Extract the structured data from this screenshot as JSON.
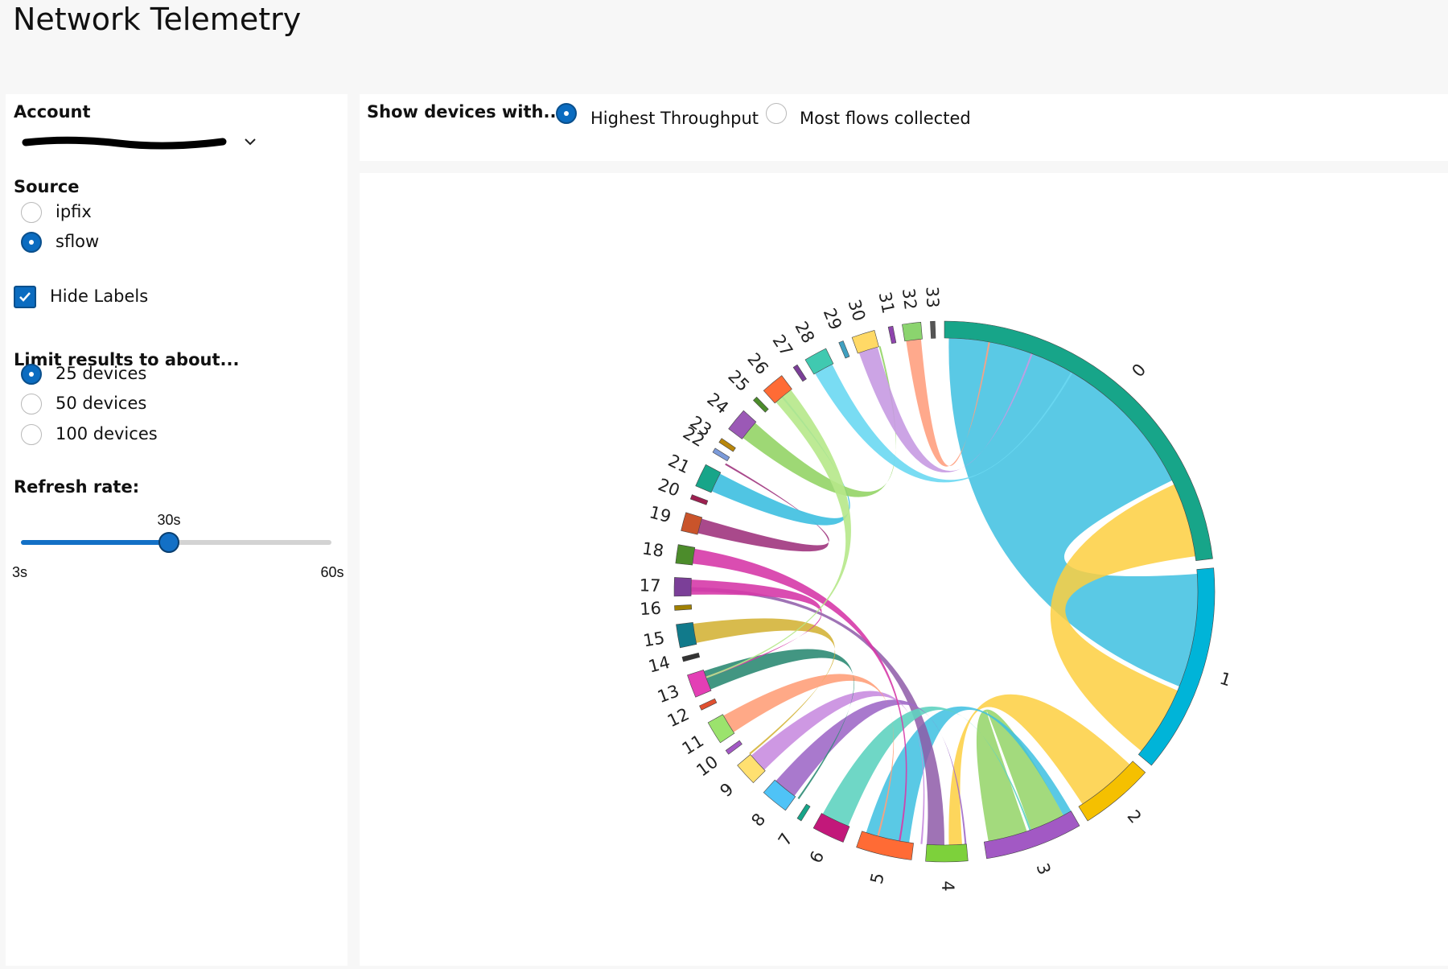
{
  "header": {
    "title": "Network Telemetry"
  },
  "sidebar": {
    "account": {
      "label": "Account"
    },
    "source": {
      "label": "Source",
      "options": [
        "ipfix",
        "sflow"
      ],
      "selected": 1
    },
    "hide_labels": {
      "label": "Hide Labels",
      "checked": true
    },
    "limit": {
      "label": "Limit results to about...",
      "options": [
        "25 devices",
        "50 devices",
        "100 devices"
      ],
      "selected": 0
    },
    "refresh": {
      "label": "Refresh rate:",
      "value": "30s",
      "min": "3s",
      "max": "60s"
    }
  },
  "toolbar": {
    "label": "Show devices with...",
    "options": [
      "Highest Throughput",
      "Most flows collected"
    ],
    "selected": 0
  },
  "chord": {
    "nodes": [
      "0",
      "1",
      "2",
      "3",
      "4",
      "5",
      "6",
      "7",
      "8",
      "9",
      "10",
      "11",
      "12",
      "13",
      "14",
      "15",
      "16",
      "17",
      "18",
      "19",
      "20",
      "21",
      "22",
      "23",
      "24",
      "25",
      "26",
      "27",
      "28",
      "29",
      "30",
      "31",
      "32",
      "33"
    ]
  }
}
